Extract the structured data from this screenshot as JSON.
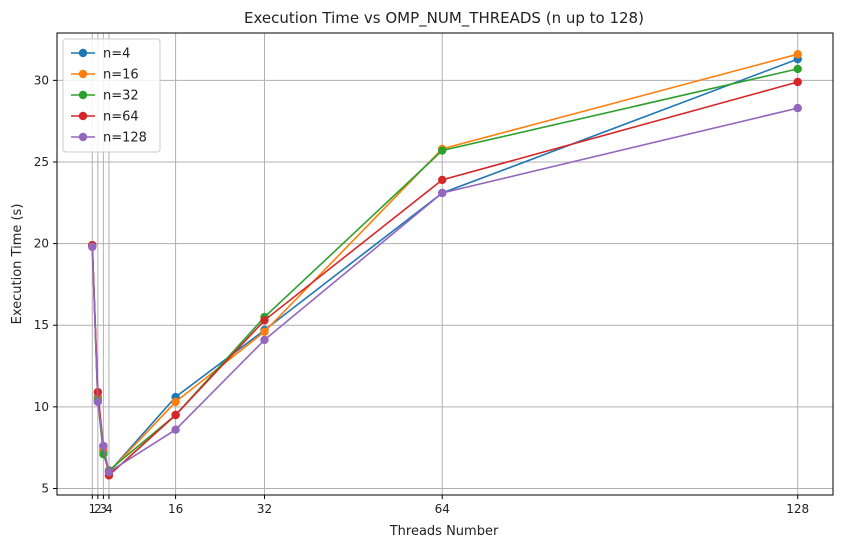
{
  "chart_data": {
    "type": "line",
    "title": "Execution Time vs OMP_NUM_THREADS (n up to 128)",
    "xlabel": "Threads Number",
    "ylabel": "Execution Time (s)",
    "x": [
      1,
      2,
      3,
      4,
      16,
      32,
      64,
      128
    ],
    "x_ticks": [
      1,
      2,
      3,
      4,
      16,
      32,
      64,
      128
    ],
    "x_tick_labels": [
      "1",
      "2",
      "3",
      "4",
      "16",
      "32",
      "64",
      "128"
    ],
    "y_ticks": [
      5,
      10,
      15,
      20,
      25,
      30
    ],
    "y_tick_labels": [
      "5",
      "10",
      "15",
      "20",
      "25",
      "30"
    ],
    "xlim": [
      -5.35,
      134.35
    ],
    "ylim": [
      4.6,
      32.9
    ],
    "grid": true,
    "legend_position": "top-left",
    "series": [
      {
        "name": "n=4",
        "color": "#1f77b4",
        "values": [
          19.9,
          10.6,
          7.3,
          6.0,
          10.6,
          14.7,
          23.1,
          31.3
        ]
      },
      {
        "name": "n=16",
        "color": "#ff7f0e",
        "values": [
          19.9,
          10.5,
          7.4,
          6.0,
          10.3,
          14.6,
          25.8,
          31.6
        ]
      },
      {
        "name": "n=32",
        "color": "#2ca02c",
        "values": [
          19.9,
          10.4,
          7.1,
          6.1,
          9.5,
          15.5,
          25.7,
          30.7
        ]
      },
      {
        "name": "n=64",
        "color": "#d62728",
        "values": [
          19.9,
          10.9,
          7.6,
          5.8,
          9.5,
          15.3,
          23.9,
          29.9
        ]
      },
      {
        "name": "n=128",
        "color": "#9467bd",
        "values": [
          19.8,
          10.3,
          7.6,
          6.0,
          8.6,
          14.1,
          23.1,
          28.3
        ]
      }
    ]
  }
}
